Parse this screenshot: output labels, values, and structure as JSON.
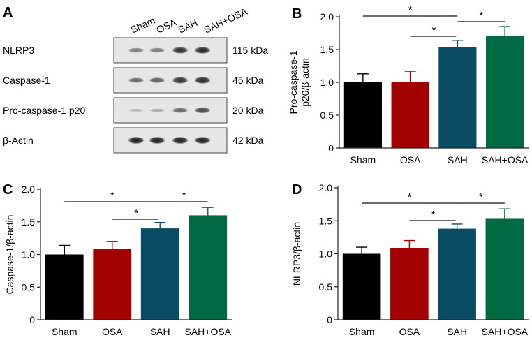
{
  "panel_letters": {
    "a": "A",
    "b": "B",
    "c": "C",
    "d": "D"
  },
  "blot": {
    "lanes": [
      "Sham",
      "OSA",
      "SAH",
      "SAH+OSA"
    ],
    "rows": [
      {
        "label": "NLRP3",
        "size": "115 kDa",
        "intensities": [
          0.45,
          0.45,
          0.85,
          0.9
        ]
      },
      {
        "label": "Caspase-1",
        "size": "45 kDa",
        "intensities": [
          0.55,
          0.6,
          0.85,
          0.9
        ]
      },
      {
        "label": "Pro-caspase-1 p20",
        "size": "20 kDa",
        "intensities": [
          0.12,
          0.18,
          0.55,
          0.72
        ]
      },
      {
        "label": "β-Actin",
        "size": "42 kDa",
        "intensities": [
          0.95,
          0.95,
          0.95,
          0.95
        ]
      }
    ]
  },
  "chart_data": [
    {
      "id": "B",
      "type": "bar",
      "categories": [
        "Sham",
        "OSA",
        "SAH",
        "SAH+OSA"
      ],
      "values": [
        1.0,
        1.01,
        1.54,
        1.71
      ],
      "errors": [
        0.13,
        0.16,
        0.1,
        0.14
      ],
      "colors": [
        "#000000",
        "#a30000",
        "#0a4c63",
        "#006a43"
      ],
      "ylabel_lines": [
        "Pro-caspase-1",
        "p20/β-actin"
      ],
      "ylim": [
        0,
        2.0
      ],
      "yticks": [
        "0",
        "0.5",
        "1.0",
        "1.5",
        "2.0"
      ],
      "significance": [
        {
          "from": 0,
          "to": 2,
          "label": "*"
        },
        {
          "from": 1,
          "to": 2,
          "label": "*"
        },
        {
          "from": 2,
          "to": 3,
          "label": "*"
        }
      ]
    },
    {
      "id": "C",
      "type": "bar",
      "categories": [
        "Sham",
        "OSA",
        "SAH",
        "SAH+OSA"
      ],
      "values": [
        1.0,
        1.08,
        1.4,
        1.6
      ],
      "errors": [
        0.14,
        0.12,
        0.09,
        0.12
      ],
      "colors": [
        "#000000",
        "#a30000",
        "#0a4c63",
        "#006a43"
      ],
      "ylabel_lines": [
        "Caspase-1/β-actin"
      ],
      "ylim": [
        0,
        2.0
      ],
      "yticks": [
        "0",
        "0.5",
        "1.0",
        "1.5",
        "2.0"
      ],
      "significance": [
        {
          "from": 0,
          "to": 2,
          "label": "*"
        },
        {
          "from": 1,
          "to": 2,
          "label": "*"
        },
        {
          "from": 2,
          "to": 3,
          "label": "*"
        }
      ]
    },
    {
      "id": "D",
      "type": "bar",
      "categories": [
        "Sham",
        "OSA",
        "SAH",
        "SAH+OSA"
      ],
      "values": [
        1.0,
        1.09,
        1.38,
        1.54
      ],
      "errors": [
        0.1,
        0.11,
        0.07,
        0.14
      ],
      "colors": [
        "#000000",
        "#a30000",
        "#0a4c63",
        "#006a43"
      ],
      "ylabel_lines": [
        "NLRP3/β-actin"
      ],
      "ylim": [
        0,
        2.0
      ],
      "yticks": [
        "0",
        "0.5",
        "1.0",
        "1.5",
        "2.0"
      ],
      "significance": [
        {
          "from": 0,
          "to": 2,
          "label": "*"
        },
        {
          "from": 1,
          "to": 2,
          "label": "*"
        },
        {
          "from": 2,
          "to": 3,
          "label": "*"
        }
      ]
    }
  ]
}
